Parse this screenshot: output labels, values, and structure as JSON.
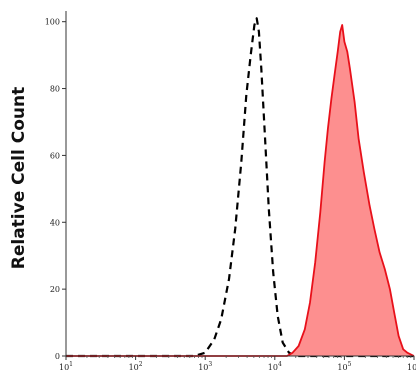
{
  "chart_data": {
    "type": "area",
    "title": "",
    "xlabel": "",
    "ylabel": "Relative Cell Count",
    "x_scale": "log",
    "xlim": [
      10,
      1000000
    ],
    "ylim": [
      0,
      102
    ],
    "grid": false,
    "legend": "none",
    "x_ticks": [
      {
        "value": 10,
        "base": "10",
        "exp": "1"
      },
      {
        "value": 100,
        "base": "10",
        "exp": "2"
      },
      {
        "value": 1000,
        "base": "10",
        "exp": "3"
      },
      {
        "value": 10000,
        "base": "10",
        "exp": "4"
      },
      {
        "value": 100000,
        "base": "10",
        "exp": "5"
      },
      {
        "value": 1000000,
        "base": "10",
        "exp": "6"
      }
    ],
    "y_ticks": [
      {
        "value": 0,
        "label": "0"
      },
      {
        "value": 20,
        "label": "20"
      },
      {
        "value": 40,
        "label": "40"
      },
      {
        "value": 60,
        "label": "60"
      },
      {
        "value": 80,
        "label": "80"
      },
      {
        "value": 100,
        "label": "100"
      }
    ],
    "series": [
      {
        "style": "dashed-line",
        "color": "#000000",
        "points": [
          [
            10,
            0
          ],
          [
            700,
            0
          ],
          [
            1000,
            1
          ],
          [
            1350,
            5
          ],
          [
            1700,
            11
          ],
          [
            2200,
            23
          ],
          [
            2700,
            38
          ],
          [
            3300,
            58
          ],
          [
            3900,
            78
          ],
          [
            4500,
            90
          ],
          [
            5100,
            99
          ],
          [
            5500,
            101
          ],
          [
            5900,
            97
          ],
          [
            6400,
            86
          ],
          [
            7200,
            66
          ],
          [
            8200,
            44
          ],
          [
            9500,
            25
          ],
          [
            11000,
            12
          ],
          [
            13000,
            4
          ],
          [
            16000,
            1
          ],
          [
            20000,
            0
          ],
          [
            1000000,
            0
          ]
        ]
      },
      {
        "style": "filled-area",
        "color": "#e8101a",
        "fill": "#fd8f8f",
        "points": [
          [
            10,
            0
          ],
          [
            15000,
            0
          ],
          [
            18000,
            1
          ],
          [
            22000,
            3
          ],
          [
            27000,
            8
          ],
          [
            32000,
            16
          ],
          [
            38000,
            28
          ],
          [
            45000,
            43
          ],
          [
            52000,
            58
          ],
          [
            58000,
            68
          ],
          [
            65000,
            77
          ],
          [
            72000,
            84
          ],
          [
            80000,
            91
          ],
          [
            87000,
            97
          ],
          [
            93000,
            99
          ],
          [
            100000,
            94
          ],
          [
            110000,
            91
          ],
          [
            120000,
            86
          ],
          [
            140000,
            76
          ],
          [
            160000,
            65
          ],
          [
            190000,
            55
          ],
          [
            230000,
            45
          ],
          [
            270000,
            38
          ],
          [
            320000,
            31
          ],
          [
            380000,
            26
          ],
          [
            450000,
            20
          ],
          [
            520000,
            13
          ],
          [
            600000,
            6
          ],
          [
            700000,
            2
          ],
          [
            800000,
            1
          ],
          [
            1000000,
            0
          ]
        ]
      }
    ]
  }
}
